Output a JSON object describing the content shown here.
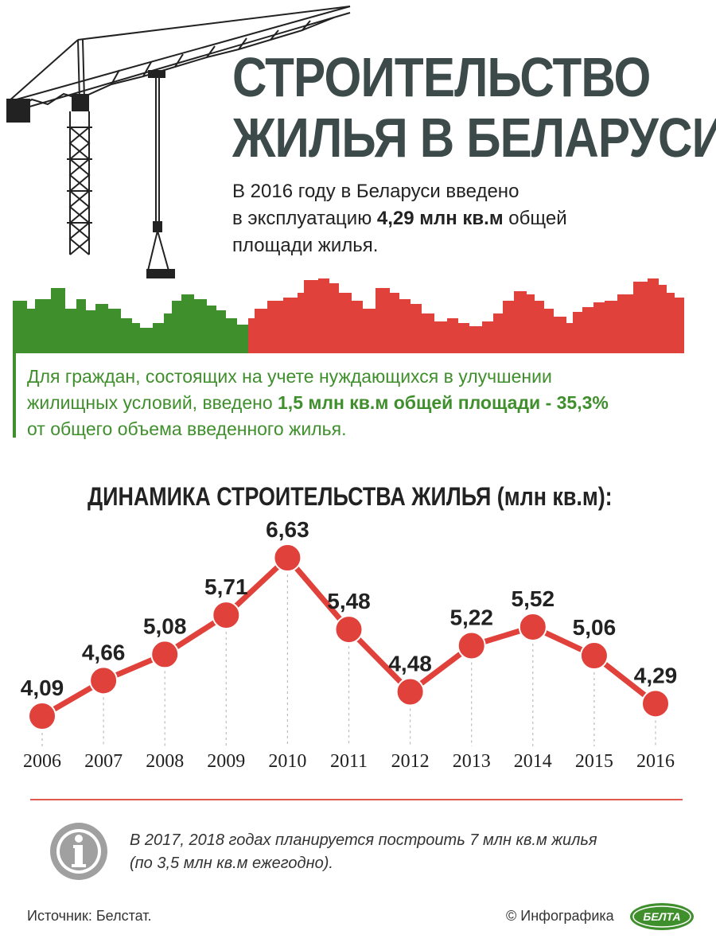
{
  "title": {
    "line1": "СТРОИТЕЛЬСТВО",
    "line2": "ЖИЛЬЯ В БЕЛАРУСИ"
  },
  "intro": {
    "line1": "В 2016 году в Беларуси введено",
    "line2_pre": "в эксплуатацию ",
    "line2_bold": "4,29 млн кв.м",
    "line2_post": " общей",
    "line3": "площади жилья."
  },
  "highlight": {
    "line1": "Для граждан, состоящих на учете нуждающихся в улучшении",
    "line2_pre": "жилищных условий, введено ",
    "line2_bold": "1,5 млн кв.м общей площади - 35,3%",
    "line3": "от общего объема введенного жилья."
  },
  "chart_title": {
    "main": "ДИНАМИКА СТРОИТЕЛЬСТВА ЖИЛЬЯ",
    "unit": "(млн кв.м):"
  },
  "chart_data": {
    "type": "line",
    "title": "ДИНАМИКА СТРОИТЕЛЬСТВА ЖИЛЬЯ (млн кв.м):",
    "x": [
      "2006",
      "2007",
      "2008",
      "2009",
      "2010",
      "2011",
      "2012",
      "2013",
      "2014",
      "2015",
      "2016"
    ],
    "values": [
      4.09,
      4.66,
      5.08,
      5.71,
      6.63,
      5.48,
      4.48,
      5.22,
      5.52,
      5.06,
      4.29
    ],
    "value_labels": [
      "4,09",
      "4,66",
      "5,08",
      "5,71",
      "6,63",
      "5,48",
      "4,48",
      "5,22",
      "5,52",
      "5,06",
      "4,29"
    ],
    "xlabel": "",
    "ylabel": "",
    "grid": false,
    "legend": "none",
    "colors": {
      "line": "#e0413a",
      "marker": "#e0413a",
      "drop_line": "#bbbbbb"
    }
  },
  "note": {
    "line1": "В 2017, 2018 годах планируется построить 7 млн кв.м жилья",
    "line2": "(по 3,5 млн кв.м ежегодно)."
  },
  "footer": {
    "source": "Источник: Белстат.",
    "credit": "© Инфографика",
    "logo_text": "БЕЛТА"
  },
  "icons": {
    "crane": "construction-crane-icon",
    "info": "info-icon",
    "skyline": "city-skyline"
  },
  "colors": {
    "title": "#3d4a4a",
    "green": "#3f8f2c",
    "red": "#e0413a",
    "gray": "#a0a0a0"
  }
}
